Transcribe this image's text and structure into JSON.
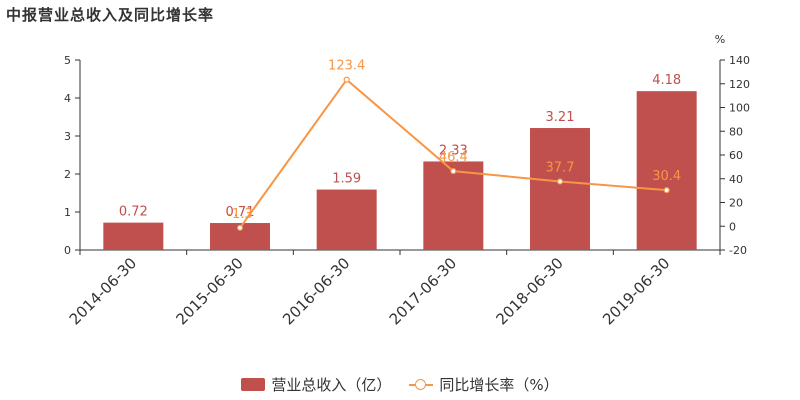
{
  "chart_data": {
    "type": "bar",
    "title": "中报营业总收入及同比增长率",
    "categories": [
      "2014-06-30",
      "2015-06-30",
      "2016-06-30",
      "2017-06-30",
      "2018-06-30",
      "2019-06-30"
    ],
    "series": [
      {
        "name": "营业总收入（亿）",
        "type": "bar",
        "axis": "left",
        "values": [
          0.72,
          0.71,
          1.59,
          2.33,
          3.21,
          4.18
        ],
        "labels": [
          "0.72",
          "0.71",
          "1.59",
          "2.33",
          "3.21",
          "4.18"
        ],
        "color": "#c0504d"
      },
      {
        "name": "同比增长率（%）",
        "type": "line",
        "axis": "right",
        "values": [
          null,
          -1.3,
          123.4,
          46.4,
          37.7,
          30.4
        ],
        "labels": [
          "",
          "-1.3",
          "123.4",
          "46.4",
          "37.7",
          "30.4"
        ],
        "color": "#f79646"
      }
    ],
    "left_axis": {
      "ylim": [
        0,
        5
      ],
      "ticks": [
        "0",
        "1",
        "2",
        "3",
        "4",
        "5"
      ]
    },
    "right_axis": {
      "ylim": [
        -20,
        140
      ],
      "unit": "%",
      "ticks": [
        "-20",
        "0",
        "20",
        "40",
        "60",
        "80",
        "100",
        "120",
        "140"
      ]
    },
    "grid": false,
    "legend_position": "bottom-center"
  }
}
